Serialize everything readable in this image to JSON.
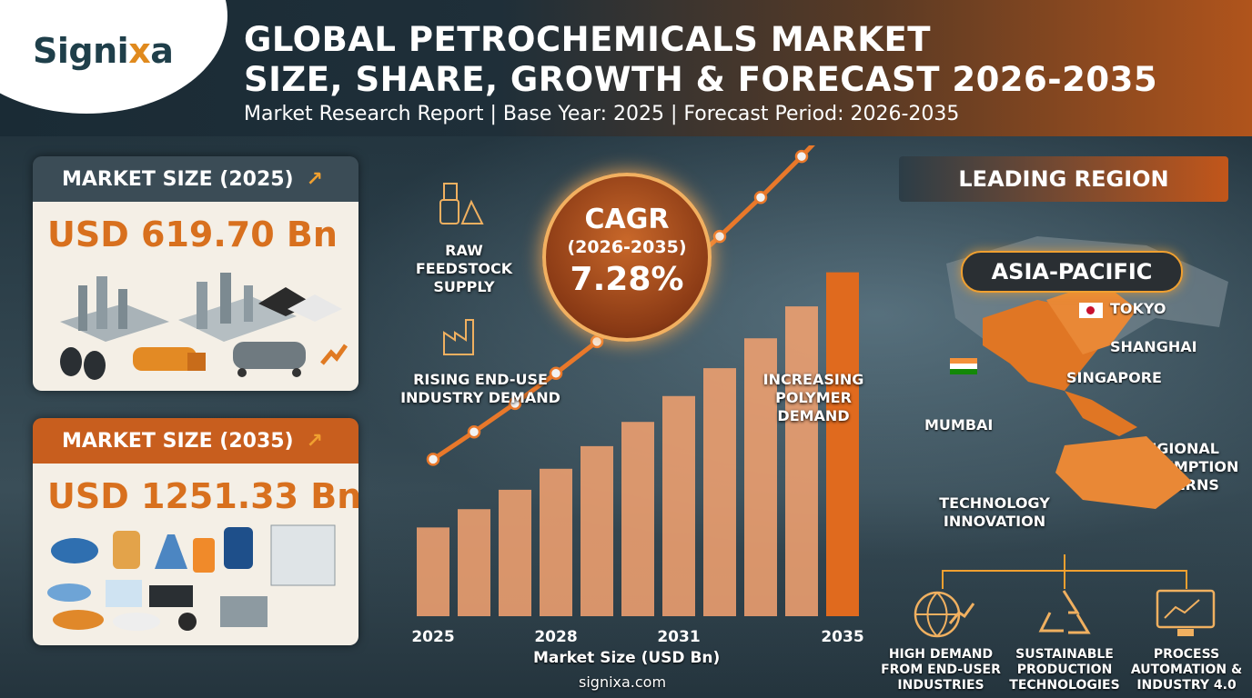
{
  "brand": {
    "logo_main": "Signi",
    "logo_x": "x",
    "logo_end": "a",
    "site": "signixa.com"
  },
  "header": {
    "title_line1": "GLOBAL PETROCHEMICALS MARKET",
    "title_line2": "SIZE, SHARE, GROWTH & FORECAST 2026-2035",
    "subtitle": "Market Research Report | Base Year: 2025 | Forecast Period: 2026-2035"
  },
  "cards": {
    "size_2025": {
      "label": "MARKET SIZE (2025)",
      "value": "USD 619.70 Bn"
    },
    "size_2035": {
      "label": "MARKET SIZE (2035)",
      "value": "USD 1251.33 Bn"
    }
  },
  "cagr": {
    "title": "CAGR",
    "period": "(2026-2035)",
    "value": "7.28%"
  },
  "drivers": {
    "raw_feedstock": "RAW FEEDSTOCK SUPPLY",
    "end_use": "RISING END-USE INDUSTRY DEMAND",
    "polymer": "INCREASING POLYMER DEMAND",
    "technology": "TECHNOLOGY INNOVATION",
    "regional": "REGIONAL CONSUMPTION PATTERNS"
  },
  "region": {
    "header": "LEADING REGION",
    "leader": "ASIA-PACIFIC",
    "cities": {
      "tokyo": "TOKYO",
      "shanghai": "SHANGHAI",
      "singapore": "SINGAPORE",
      "mumbai": "MUMBAI"
    }
  },
  "bottom_factors": {
    "demand": "HIGH DEMAND FROM END-USER INDUSTRIES",
    "sustainable": "SUSTAINABLE PRODUCTION TECHNOLOGIES",
    "automation": "PROCESS AUTOMATION & INDUSTRY 4.0"
  },
  "colors": {
    "accent": "#d8701e",
    "bar": "#f0a070",
    "bar_last": "#e06a1e",
    "line": "#e9782a"
  },
  "chart_data": {
    "type": "bar",
    "xlabel": "Market Size (USD Bn)",
    "categories": [
      "2025",
      "2026",
      "2027",
      "2028",
      "2029",
      "2030",
      "2031",
      "2032",
      "2033",
      "2034",
      "2035"
    ],
    "tick_labels": [
      "2025",
      "",
      "",
      "2028",
      "",
      "",
      "2031",
      "",
      "",
      "",
      "2035"
    ],
    "values": [
      619.7,
      665,
      713,
      765,
      821,
      881,
      945,
      1014,
      1088,
      1167,
      1251.33
    ],
    "trend_values": [
      619.7,
      665,
      713,
      765,
      821,
      881,
      945,
      1014,
      1088,
      1167,
      1251.33
    ],
    "grid": false
  }
}
